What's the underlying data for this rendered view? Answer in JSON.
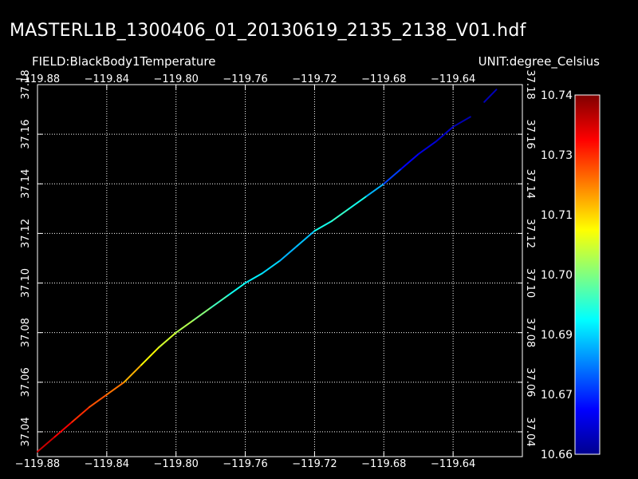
{
  "header": {
    "title": "MASTERL1B_1300406_01_20130619_2135_2138_V01.hdf",
    "field": "FIELD:BlackBody1Temperature",
    "unit": "UNIT:degree_Celsius"
  },
  "chart_data": {
    "type": "scatter",
    "xlim": [
      -119.88,
      -119.6
    ],
    "ylim": [
      37.03,
      37.18
    ],
    "x_ticks": [
      -119.88,
      -119.84,
      -119.8,
      -119.76,
      -119.72,
      -119.68,
      -119.64
    ],
    "y_ticks": [
      37.04,
      37.06,
      37.08,
      37.1,
      37.12,
      37.14,
      37.16,
      37.18
    ],
    "x_tick_labels": [
      "−119.88",
      "−119.84",
      "−119.80",
      "−119.76",
      "−119.72",
      "−119.68",
      "−119.64"
    ],
    "y_tick_labels": [
      "37.04",
      "37.06",
      "37.08",
      "37.10",
      "37.12",
      "37.14",
      "37.16",
      "37.18"
    ],
    "grid": true,
    "colorbar": {
      "min": 10.66,
      "max": 10.74,
      "labels": [
        "10.74",
        "10.73",
        "10.71",
        "10.70",
        "10.69",
        "10.67",
        "10.66"
      ],
      "colormap": [
        "#00008f",
        "#0000ff",
        "#0080ff",
        "#00ffff",
        "#80ff80",
        "#ffff00",
        "#ff8000",
        "#ff0000",
        "#800000"
      ]
    },
    "track": [
      {
        "x": -119.88,
        "y": 37.032,
        "v": 10.735
      },
      {
        "x": -119.87,
        "y": 37.038,
        "v": 10.733
      },
      {
        "x": -119.86,
        "y": 37.044,
        "v": 10.728
      },
      {
        "x": -119.85,
        "y": 37.05,
        "v": 10.725
      },
      {
        "x": -119.84,
        "y": 37.055,
        "v": 10.722
      },
      {
        "x": -119.83,
        "y": 37.06,
        "v": 10.72
      },
      {
        "x": -119.82,
        "y": 37.067,
        "v": 10.712
      },
      {
        "x": -119.81,
        "y": 37.074,
        "v": 10.708
      },
      {
        "x": -119.8,
        "y": 37.08,
        "v": 10.705
      },
      {
        "x": -119.79,
        "y": 37.085,
        "v": 10.703
      },
      {
        "x": -119.78,
        "y": 37.09,
        "v": 10.698
      },
      {
        "x": -119.77,
        "y": 37.095,
        "v": 10.692
      },
      {
        "x": -119.76,
        "y": 37.1,
        "v": 10.69
      },
      {
        "x": -119.75,
        "y": 37.104,
        "v": 10.688
      },
      {
        "x": -119.74,
        "y": 37.109,
        "v": 10.686
      },
      {
        "x": -119.73,
        "y": 37.115,
        "v": 10.682
      },
      {
        "x": -119.72,
        "y": 37.121,
        "v": 10.688
      },
      {
        "x": -119.71,
        "y": 37.125,
        "v": 10.695
      },
      {
        "x": -119.7,
        "y": 37.13,
        "v": 10.693
      },
      {
        "x": -119.69,
        "y": 37.135,
        "v": 10.69
      },
      {
        "x": -119.68,
        "y": 37.14,
        "v": 10.678
      },
      {
        "x": -119.67,
        "y": 37.146,
        "v": 10.672
      },
      {
        "x": -119.66,
        "y": 37.152,
        "v": 10.668
      },
      {
        "x": -119.65,
        "y": 37.157,
        "v": 10.666
      },
      {
        "x": -119.64,
        "y": 37.163,
        "v": 10.664
      },
      {
        "x": -119.63,
        "y": 37.167,
        "v": 10.662
      }
    ],
    "track_tail": [
      {
        "x": -119.622,
        "y": 37.173,
        "v": 10.664
      },
      {
        "x": -119.615,
        "y": 37.178,
        "v": 10.663
      }
    ]
  }
}
